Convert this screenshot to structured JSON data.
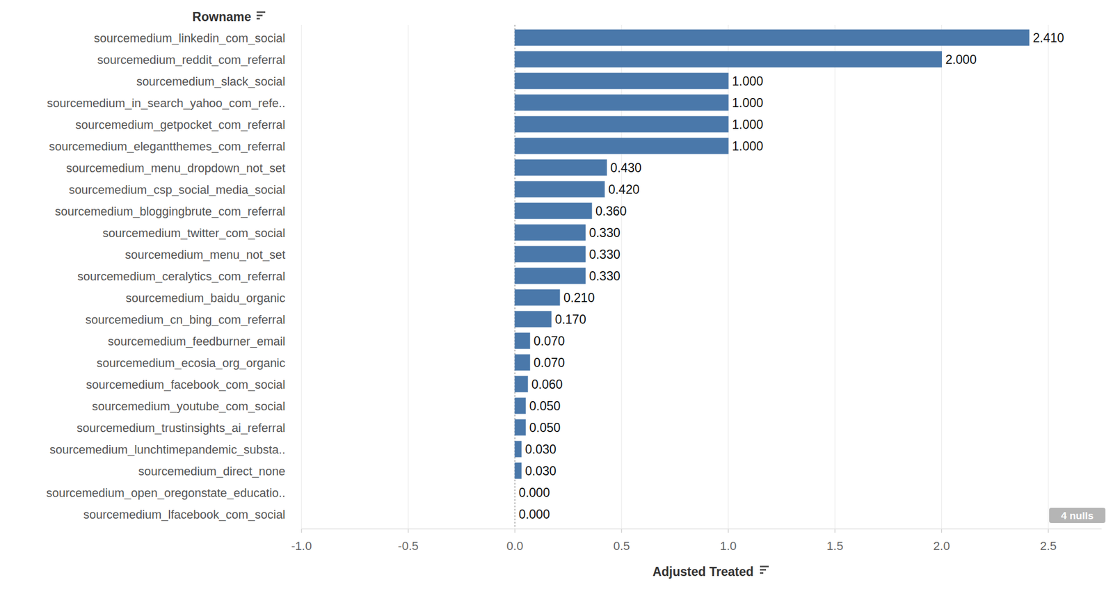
{
  "chart_data": {
    "type": "bar",
    "orientation": "horizontal",
    "y_label": "Rowname",
    "x_label": "Adjusted Treated",
    "categories": [
      "sourcemedium_linkedin_com_social",
      "sourcemedium_reddit_com_referral",
      "sourcemedium_slack_social",
      "sourcemedium_in_search_yahoo_com_refe..",
      "sourcemedium_getpocket_com_referral",
      "sourcemedium_elegantthemes_com_referral",
      "sourcemedium_menu_dropdown_not_set",
      "sourcemedium_csp_social_media_social",
      "sourcemedium_bloggingbrute_com_referral",
      "sourcemedium_twitter_com_social",
      "sourcemedium_menu_not_set",
      "sourcemedium_ceralytics_com_referral",
      "sourcemedium_baidu_organic",
      "sourcemedium_cn_bing_com_referral",
      "sourcemedium_feedburner_email",
      "sourcemedium_ecosia_org_organic",
      "sourcemedium_facebook_com_social",
      "sourcemedium_youtube_com_social",
      "sourcemedium_trustinsights_ai_referral",
      "sourcemedium_lunchtimepandemic_substa..",
      "sourcemedium_direct_none",
      "sourcemedium_open_oregonstate_educatio..",
      "sourcemedium_lfacebook_com_social"
    ],
    "values": [
      2.41,
      2.0,
      1.0,
      1.0,
      1.0,
      1.0,
      0.43,
      0.42,
      0.36,
      0.33,
      0.33,
      0.33,
      0.21,
      0.17,
      0.07,
      0.07,
      0.06,
      0.05,
      0.05,
      0.03,
      0.03,
      0.0,
      0.0
    ],
    "value_labels": [
      "2.410",
      "2.000",
      "1.000",
      "1.000",
      "1.000",
      "1.000",
      "0.430",
      "0.420",
      "0.360",
      "0.330",
      "0.330",
      "0.330",
      "0.210",
      "0.170",
      "0.070",
      "0.070",
      "0.060",
      "0.050",
      "0.050",
      "0.030",
      "0.030",
      "0.000",
      "0.000"
    ],
    "color": "#4a78aa",
    "xlim": [
      -1.0,
      2.75
    ],
    "xticks": [
      {
        "value": -1.0,
        "label": "-1.0"
      },
      -0.5,
      {
        "value": 0.0,
        "label": "0.0"
      },
      0.5,
      {
        "value": 1.0,
        "label": "1.0"
      },
      1.5,
      {
        "value": 2.0,
        "label": "2.0"
      },
      2.5
    ],
    "grid": true,
    "data_labels": true,
    "annotation": "4 nulls"
  }
}
